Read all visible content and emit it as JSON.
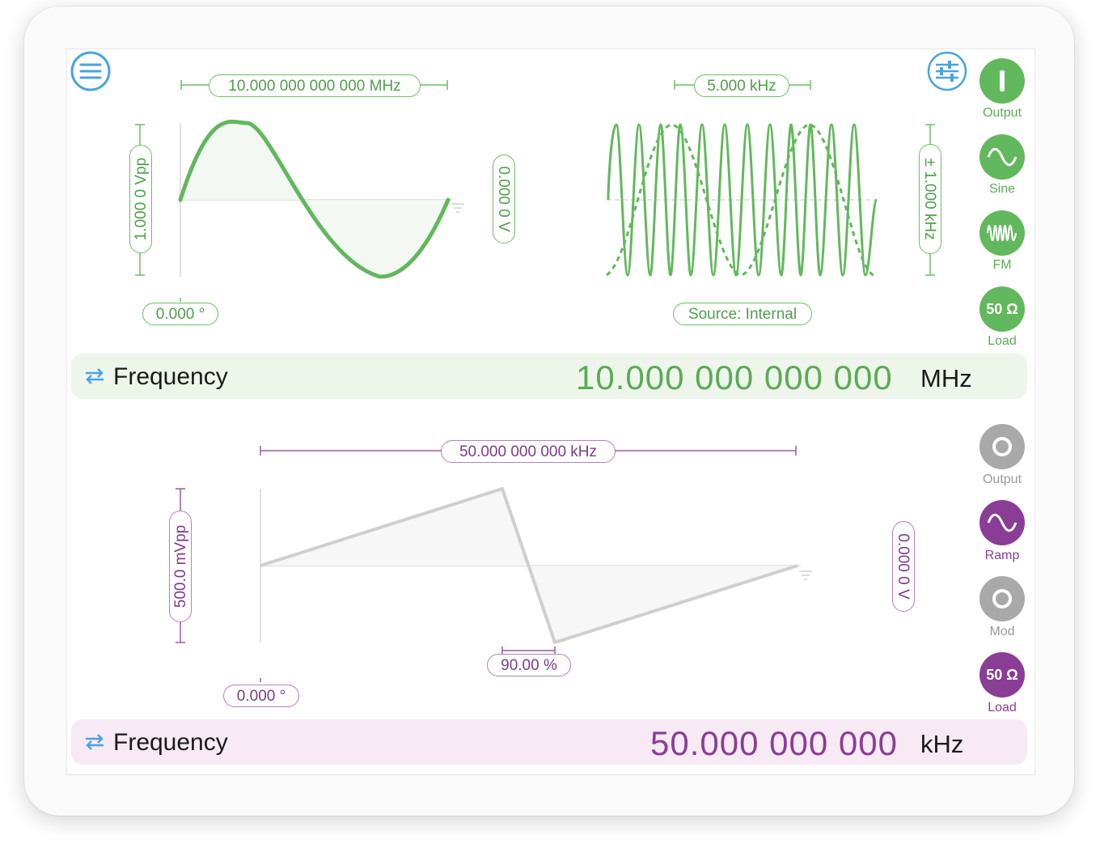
{
  "channel1": {
    "frequency_marker": "10.000 000 000 000 MHz",
    "amplitude_marker": "1.000 0 Vpp",
    "offset_marker": "0.000 0 V",
    "phase_marker": "0.000 °",
    "mod_rate_marker": "5.000 kHz",
    "deviation_marker": "± 1.000 kHz",
    "source_marker": "Source: Internal",
    "buttons": [
      {
        "label": "Output",
        "icon": "power-icon"
      },
      {
        "label": "Sine",
        "icon": "sine-wave-icon"
      },
      {
        "label": "FM",
        "icon": "fm-wave-icon"
      },
      {
        "label": "Load",
        "icon": "load-icon",
        "badge": "50 Ω"
      }
    ],
    "param_name": "Frequency",
    "param_value": "10.000 000 000 000",
    "param_unit": "MHz",
    "color": "#5aab55",
    "bar_color": "#eef6ec"
  },
  "channel2": {
    "frequency_marker": "50.000 000 000 kHz",
    "amplitude_marker": "500.0 mVpp",
    "offset_marker": "0.000 0 V",
    "phase_marker": "0.000 °",
    "symmetry_marker": "90.00 %",
    "buttons": [
      {
        "label": "Output",
        "icon": "output-off-icon"
      },
      {
        "label": "Ramp",
        "icon": "ramp-wave-icon"
      },
      {
        "label": "Mod",
        "icon": "mod-off-icon"
      },
      {
        "label": "Load",
        "icon": "load-icon",
        "badge": "50 Ω"
      }
    ],
    "param_name": "Frequency",
    "param_value": "50.000 000 000",
    "param_unit": "kHz",
    "color": "#8a3d95",
    "bar_color": "#f7eaf4"
  },
  "toolbar": {
    "menu_icon": "hamburger-menu-icon",
    "settings_icon": "sliders-icon",
    "accent": "#4aa3df"
  }
}
